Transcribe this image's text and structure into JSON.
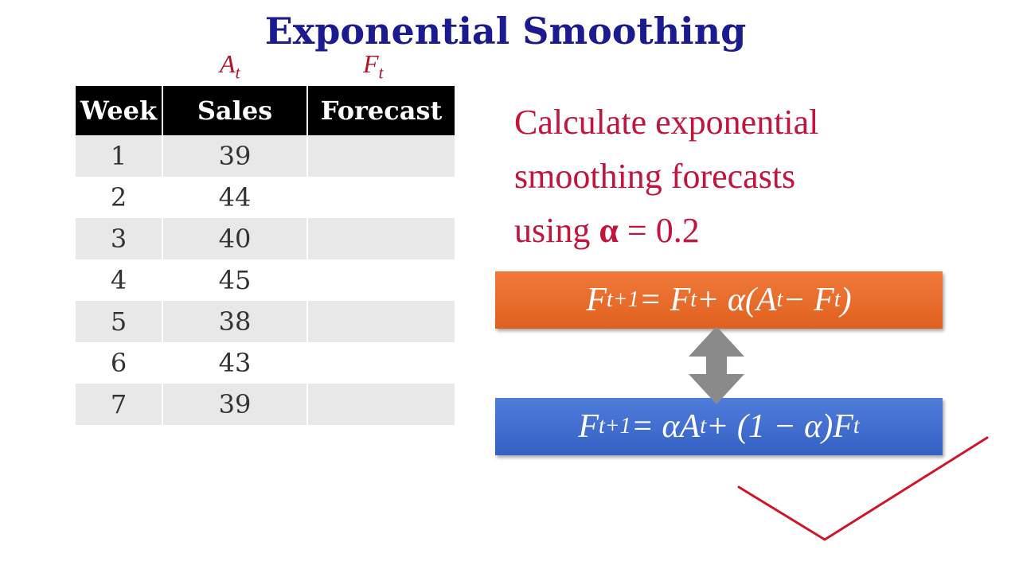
{
  "title": "Exponential Smoothing",
  "column_symbols": {
    "sales": {
      "base": "A",
      "sub": "t"
    },
    "forecast": {
      "base": "F",
      "sub": "t"
    }
  },
  "table": {
    "headers": [
      "Week",
      "Sales",
      "Forecast"
    ],
    "rows": [
      {
        "week": "1",
        "sales": "39",
        "forecast": ""
      },
      {
        "week": "2",
        "sales": "44",
        "forecast": ""
      },
      {
        "week": "3",
        "sales": "40",
        "forecast": ""
      },
      {
        "week": "4",
        "sales": "45",
        "forecast": ""
      },
      {
        "week": "5",
        "sales": "38",
        "forecast": ""
      },
      {
        "week": "6",
        "sales": "43",
        "forecast": ""
      },
      {
        "week": "7",
        "sales": "39",
        "forecast": ""
      }
    ]
  },
  "prompt": {
    "line1": "Calculate exponential",
    "line2": "smoothing forecasts",
    "line3_prefix": "using ",
    "alpha_symbol": "α",
    "line3_suffix": " = 0.2"
  },
  "formulas": [
    {
      "parts": [
        [
          "F",
          "t+1"
        ],
        [
          " = F",
          "t"
        ],
        [
          " + α(A",
          "t"
        ],
        [
          " − F",
          "t"
        ],
        [
          ")",
          ""
        ]
      ]
    },
    {
      "parts": [
        [
          "F",
          "t+1"
        ],
        [
          " = αA",
          "t"
        ],
        [
          " + (1 − α)F",
          "t"
        ]
      ]
    }
  ],
  "colors": {
    "title": "#1b1b8f",
    "accent": "#c2143d",
    "formula1": "#e8692a",
    "formula2": "#4070d0",
    "checkmark": "#d0152a"
  },
  "icons": [
    "double-arrow-vertical",
    "checkmark"
  ]
}
